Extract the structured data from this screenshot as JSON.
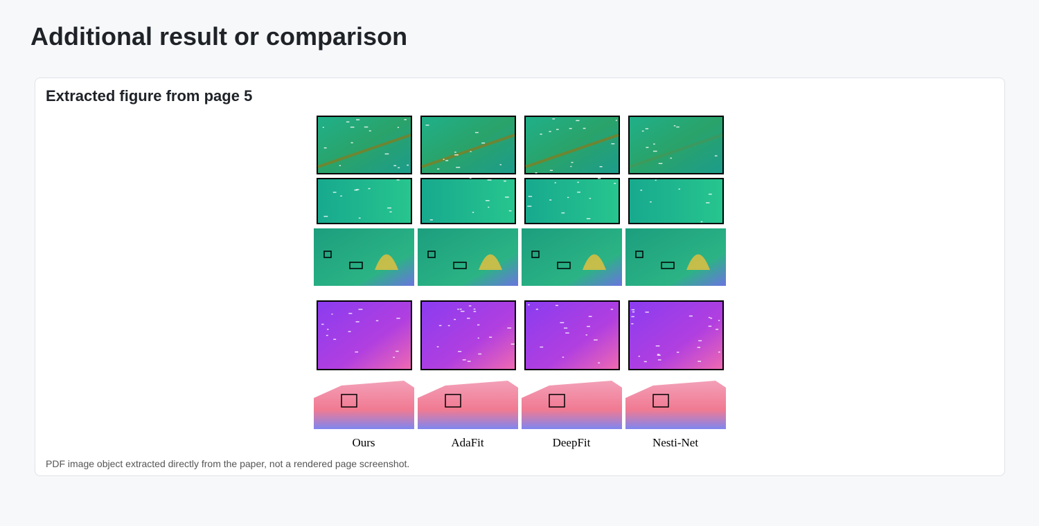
{
  "header": {
    "title": "Additional result or comparison"
  },
  "card": {
    "title": "Extracted figure from page 5",
    "figure": {
      "labels": [
        "Ours",
        "AdaFit",
        "DeepFit",
        "Nesti-Net"
      ]
    },
    "caption": "PDF image object extracted directly from the paper, not a rendered page screenshot."
  }
}
